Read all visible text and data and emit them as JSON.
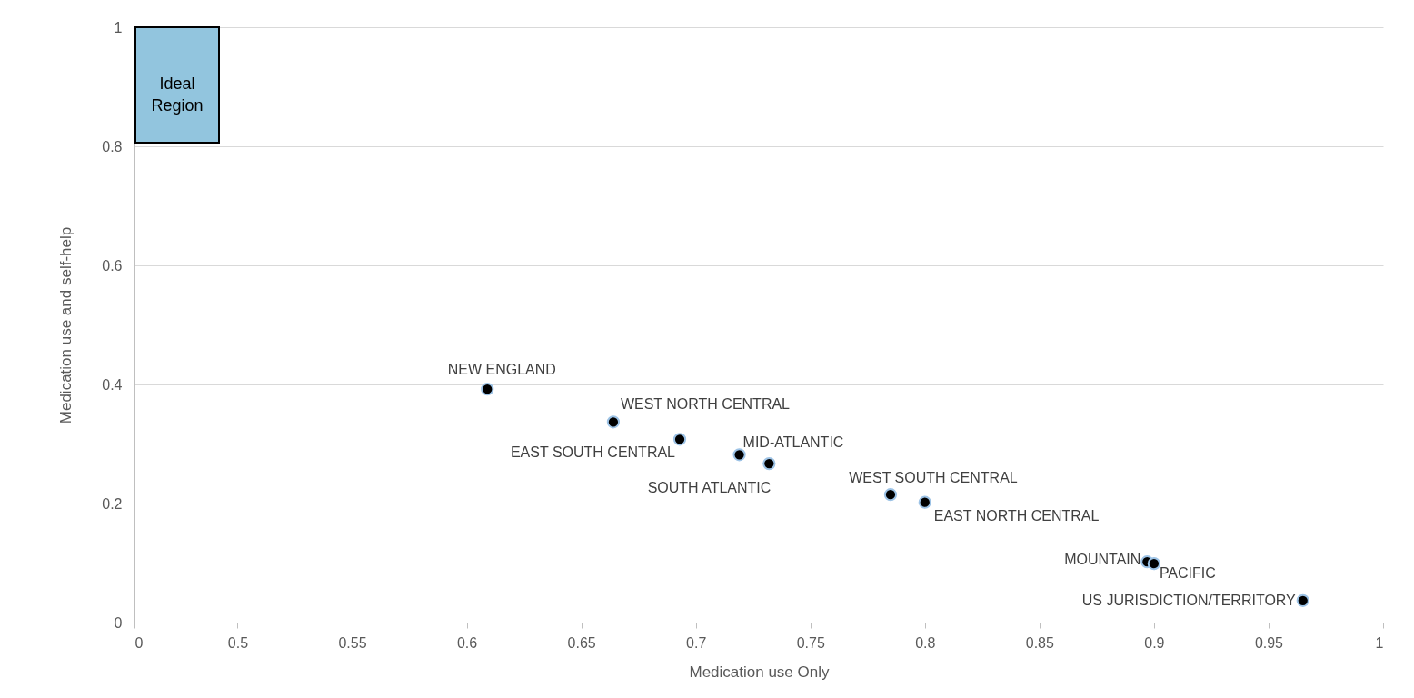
{
  "chart_data": {
    "type": "scatter",
    "xlabel": "Medication use Only",
    "ylabel": "Medication use and self-help",
    "x": [
      0.609,
      0.664,
      0.693,
      0.719,
      0.732,
      0.785,
      0.8,
      0.897,
      0.9,
      0.965
    ],
    "series": [
      {
        "color": "#000000",
        "values": [
          0.392,
          0.337,
          0.308,
          0.282,
          0.267,
          0.215,
          0.202,
          0.102,
          0.099,
          0.037
        ]
      }
    ],
    "xlim": [
      0.455,
      1
    ],
    "xticks": [
      {
        "value": 0.455,
        "label": "0"
      },
      0.5,
      0.55,
      0.6,
      0.65,
      0.7,
      0.75,
      0.8,
      0.85,
      0.9,
      0.95,
      1
    ],
    "ylim": [
      0,
      1
    ],
    "yticks": [
      0,
      0.2,
      0.4,
      0.6,
      0.8,
      1
    ],
    "grid": "y",
    "marker": "circle",
    "annotations": [
      "Ideal Region",
      {
        "text": "NEW ENGLAND",
        "x": 0.609,
        "y": 0.392
      },
      {
        "text": "WEST NORTH CENTRAL",
        "x": 0.664,
        "y": 0.337
      },
      {
        "text": "EAST SOUTH CENTRAL",
        "x": 0.693,
        "y": 0.308
      },
      {
        "text": "MID-ATLANTIC",
        "x": 0.719,
        "y": 0.282
      },
      {
        "text": "SOUTH ATLANTIC",
        "x": 0.732,
        "y": 0.267
      },
      {
        "text": "WEST SOUTH CENTRAL",
        "x": 0.785,
        "y": 0.215
      },
      {
        "text": "EAST NORTH CENTRAL",
        "x": 0.8,
        "y": 0.202
      },
      {
        "text": "MOUNTAIN",
        "x": 0.897,
        "y": 0.102
      },
      {
        "text": "PACIFIC",
        "x": 0.9,
        "y": 0.099
      },
      {
        "text": "US JURISDICTION/TERRITORY",
        "x": 0.965,
        "y": 0.037
      }
    ]
  }
}
